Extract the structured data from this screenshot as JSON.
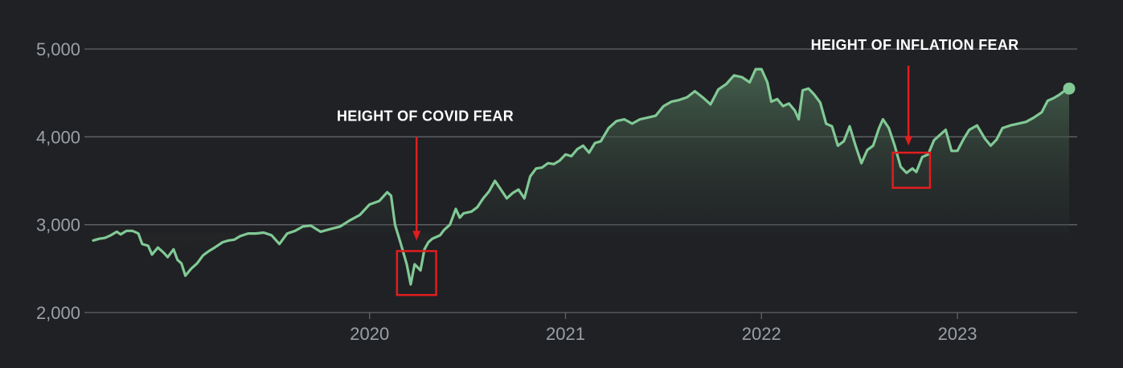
{
  "chart_data": {
    "type": "area",
    "y_ticks": [
      {
        "value": 2000,
        "label": "2,000"
      },
      {
        "value": 3000,
        "label": "3,000"
      },
      {
        "value": 4000,
        "label": "4,000"
      },
      {
        "value": 5000,
        "label": "5,000"
      }
    ],
    "x_ticks": [
      {
        "value": 2020.0,
        "label": "2020"
      },
      {
        "value": 2021.0,
        "label": "2021"
      },
      {
        "value": 2022.0,
        "label": "2022"
      },
      {
        "value": 2023.0,
        "label": "2023"
      }
    ],
    "xlim": [
      2018.59,
      2023.57
    ],
    "ylim": [
      2000,
      5000
    ],
    "grid": true,
    "colors": {
      "background": "#202124",
      "grid": "#5f6368",
      "line": "#81c995",
      "area_top": "#4a6a53",
      "annotation": "#e01e1e",
      "annotation_text": "#ffffff",
      "tick_text": "#9aa0a6"
    },
    "annotations": [
      {
        "text": "HEIGHT OF COVID FEAR",
        "x_range": [
          2020.14,
          2020.34
        ],
        "y_range": [
          2200,
          2700
        ],
        "arrow_x": 2020.24,
        "arrow_from": 4000,
        "arrow_to": 2820
      },
      {
        "text": "HEIGHT OF INFLATION FEAR",
        "x_range": [
          2022.67,
          2022.86
        ],
        "y_range": [
          3420,
          3820
        ],
        "arrow_x": 2022.75,
        "arrow_from": 4810,
        "arrow_to": 3900
      }
    ],
    "series": [
      {
        "values": [
          [
            2018.59,
            2820
          ],
          [
            2018.62,
            2840
          ],
          [
            2018.65,
            2850
          ],
          [
            2018.68,
            2880
          ],
          [
            2018.71,
            2920
          ],
          [
            2018.73,
            2890
          ],
          [
            2018.76,
            2930
          ],
          [
            2018.79,
            2930
          ],
          [
            2018.82,
            2900
          ],
          [
            2018.84,
            2780
          ],
          [
            2018.87,
            2760
          ],
          [
            2018.89,
            2660
          ],
          [
            2018.92,
            2740
          ],
          [
            2018.95,
            2680
          ],
          [
            2018.97,
            2630
          ],
          [
            2019.0,
            2720
          ],
          [
            2019.02,
            2600
          ],
          [
            2019.04,
            2560
          ],
          [
            2019.06,
            2420
          ],
          [
            2019.09,
            2500
          ],
          [
            2019.12,
            2560
          ],
          [
            2019.15,
            2650
          ],
          [
            2019.18,
            2700
          ],
          [
            2019.21,
            2740
          ],
          [
            2019.25,
            2800
          ],
          [
            2019.28,
            2820
          ],
          [
            2019.31,
            2830
          ],
          [
            2019.34,
            2870
          ],
          [
            2019.38,
            2900
          ],
          [
            2019.42,
            2900
          ],
          [
            2019.46,
            2910
          ],
          [
            2019.5,
            2880
          ],
          [
            2019.54,
            2780
          ],
          [
            2019.58,
            2900
          ],
          [
            2019.62,
            2930
          ],
          [
            2019.66,
            2980
          ],
          [
            2019.7,
            2990
          ],
          [
            2019.75,
            2920
          ],
          [
            2019.8,
            2950
          ],
          [
            2019.85,
            2980
          ],
          [
            2019.9,
            3050
          ],
          [
            2019.95,
            3110
          ],
          [
            2020.0,
            3230
          ],
          [
            2020.05,
            3270
          ],
          [
            2020.09,
            3370
          ],
          [
            2020.11,
            3330
          ],
          [
            2020.13,
            3000
          ],
          [
            2020.16,
            2780
          ],
          [
            2020.19,
            2550
          ],
          [
            2020.21,
            2320
          ],
          [
            2020.23,
            2550
          ],
          [
            2020.26,
            2480
          ],
          [
            2020.28,
            2720
          ],
          [
            2020.3,
            2800
          ],
          [
            2020.32,
            2840
          ],
          [
            2020.34,
            2860
          ],
          [
            2020.36,
            2880
          ],
          [
            2020.38,
            2940
          ],
          [
            2020.41,
            3000
          ],
          [
            2020.44,
            3180
          ],
          [
            2020.46,
            3080
          ],
          [
            2020.48,
            3130
          ],
          [
            2020.52,
            3150
          ],
          [
            2020.55,
            3200
          ],
          [
            2020.58,
            3300
          ],
          [
            2020.61,
            3380
          ],
          [
            2020.64,
            3500
          ],
          [
            2020.67,
            3400
          ],
          [
            2020.7,
            3300
          ],
          [
            2020.73,
            3360
          ],
          [
            2020.76,
            3400
          ],
          [
            2020.79,
            3300
          ],
          [
            2020.82,
            3550
          ],
          [
            2020.85,
            3640
          ],
          [
            2020.88,
            3650
          ],
          [
            2020.91,
            3700
          ],
          [
            2020.94,
            3690
          ],
          [
            2020.97,
            3730
          ],
          [
            2021.0,
            3800
          ],
          [
            2021.03,
            3780
          ],
          [
            2021.06,
            3860
          ],
          [
            2021.09,
            3900
          ],
          [
            2021.12,
            3820
          ],
          [
            2021.15,
            3930
          ],
          [
            2021.18,
            3950
          ],
          [
            2021.22,
            4100
          ],
          [
            2021.26,
            4180
          ],
          [
            2021.3,
            4200
          ],
          [
            2021.34,
            4150
          ],
          [
            2021.38,
            4200
          ],
          [
            2021.42,
            4220
          ],
          [
            2021.46,
            4240
          ],
          [
            2021.5,
            4350
          ],
          [
            2021.54,
            4400
          ],
          [
            2021.58,
            4420
          ],
          [
            2021.62,
            4450
          ],
          [
            2021.66,
            4520
          ],
          [
            2021.7,
            4450
          ],
          [
            2021.74,
            4370
          ],
          [
            2021.78,
            4540
          ],
          [
            2021.82,
            4600
          ],
          [
            2021.86,
            4700
          ],
          [
            2021.9,
            4680
          ],
          [
            2021.94,
            4620
          ],
          [
            2021.97,
            4770
          ],
          [
            2022.0,
            4770
          ],
          [
            2022.03,
            4620
          ],
          [
            2022.05,
            4400
          ],
          [
            2022.08,
            4430
          ],
          [
            2022.11,
            4350
          ],
          [
            2022.14,
            4380
          ],
          [
            2022.17,
            4300
          ],
          [
            2022.19,
            4200
          ],
          [
            2022.21,
            4530
          ],
          [
            2022.24,
            4550
          ],
          [
            2022.27,
            4480
          ],
          [
            2022.3,
            4390
          ],
          [
            2022.33,
            4150
          ],
          [
            2022.36,
            4120
          ],
          [
            2022.39,
            3900
          ],
          [
            2022.42,
            3950
          ],
          [
            2022.45,
            4120
          ],
          [
            2022.48,
            3900
          ],
          [
            2022.51,
            3700
          ],
          [
            2022.54,
            3850
          ],
          [
            2022.57,
            3900
          ],
          [
            2022.6,
            4100
          ],
          [
            2022.62,
            4200
          ],
          [
            2022.65,
            4100
          ],
          [
            2022.68,
            3900
          ],
          [
            2022.71,
            3660
          ],
          [
            2022.74,
            3590
          ],
          [
            2022.77,
            3640
          ],
          [
            2022.79,
            3600
          ],
          [
            2022.82,
            3770
          ],
          [
            2022.85,
            3800
          ],
          [
            2022.88,
            3960
          ],
          [
            2022.91,
            4020
          ],
          [
            2022.94,
            4080
          ],
          [
            2022.97,
            3840
          ],
          [
            2023.0,
            3840
          ],
          [
            2023.03,
            3970
          ],
          [
            2023.06,
            4080
          ],
          [
            2023.1,
            4130
          ],
          [
            2023.14,
            3980
          ],
          [
            2023.17,
            3900
          ],
          [
            2023.2,
            3970
          ],
          [
            2023.23,
            4100
          ],
          [
            2023.27,
            4130
          ],
          [
            2023.31,
            4150
          ],
          [
            2023.35,
            4170
          ],
          [
            2023.39,
            4220
          ],
          [
            2023.43,
            4280
          ],
          [
            2023.46,
            4410
          ],
          [
            2023.49,
            4440
          ],
          [
            2023.52,
            4480
          ],
          [
            2023.55,
            4530
          ],
          [
            2023.57,
            4550
          ]
        ]
      }
    ]
  }
}
